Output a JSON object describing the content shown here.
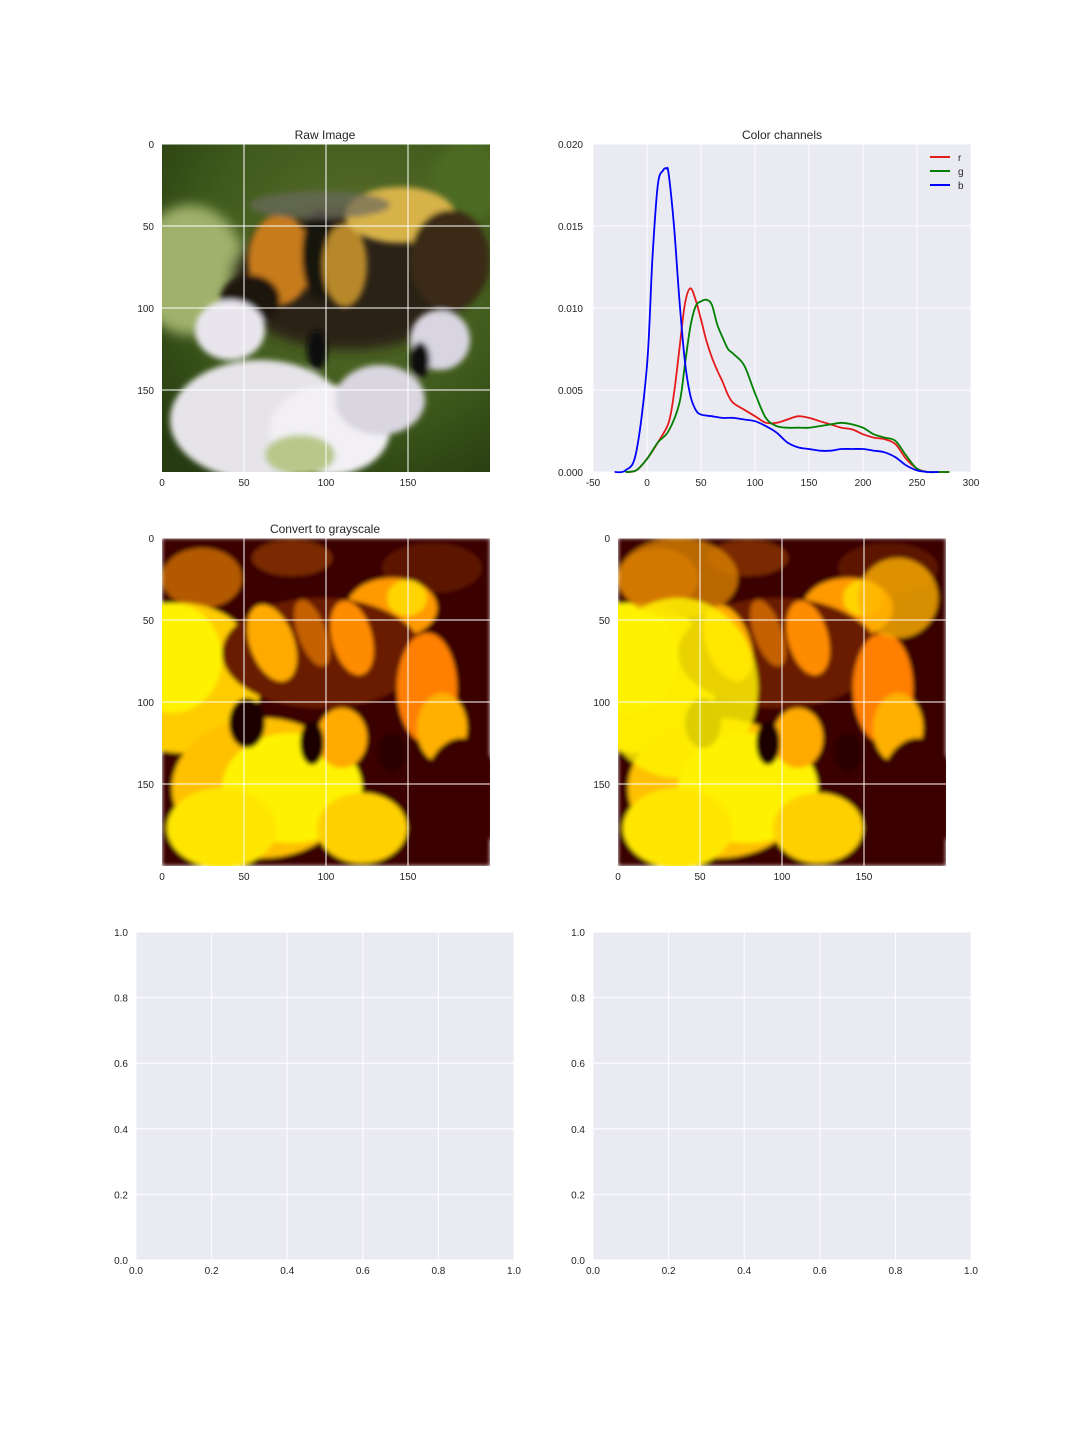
{
  "chart_data": [
    {
      "type": "image",
      "title": "Raw Image",
      "colormap": "rgb",
      "xticks": [
        0,
        50,
        100,
        150
      ],
      "yticks": [
        0,
        50,
        100,
        150
      ],
      "xlim": [
        0,
        200
      ],
      "ylim": [
        200,
        0
      ],
      "grid": true
    },
    {
      "type": "line",
      "title": "Color channels",
      "xlim": [
        -50,
        300
      ],
      "ylim": [
        0,
        0.02
      ],
      "xticks": [
        -50,
        0,
        50,
        100,
        150,
        200,
        250,
        300
      ],
      "yticks": [
        "0.000",
        "0.005",
        "0.010",
        "0.015",
        "0.020"
      ],
      "grid": true,
      "legend": "top-right",
      "series": [
        {
          "name": "r",
          "color": "#e41a1c",
          "x": [
            -20,
            -10,
            0,
            10,
            20,
            25,
            30,
            35,
            40,
            45,
            50,
            55,
            60,
            65,
            70,
            75,
            80,
            90,
            100,
            110,
            120,
            130,
            140,
            150,
            160,
            170,
            180,
            190,
            200,
            210,
            220,
            230,
            240,
            250,
            260,
            270,
            280
          ],
          "y": [
            0.0,
            0.0001,
            0.0008,
            0.0018,
            0.003,
            0.0048,
            0.0075,
            0.0102,
            0.0112,
            0.0105,
            0.0093,
            0.008,
            0.007,
            0.0062,
            0.0055,
            0.0047,
            0.0042,
            0.0038,
            0.0034,
            0.003,
            0.003,
            0.0032,
            0.0034,
            0.0033,
            0.0031,
            0.0029,
            0.0027,
            0.0026,
            0.0023,
            0.0021,
            0.002,
            0.0017,
            0.0008,
            0.0002,
            0.0,
            0.0,
            0.0
          ]
        },
        {
          "name": "g",
          "color": "#008000",
          "x": [
            -20,
            -10,
            0,
            10,
            20,
            30,
            35,
            40,
            45,
            50,
            55,
            60,
            65,
            70,
            75,
            80,
            90,
            100,
            110,
            120,
            130,
            140,
            150,
            160,
            170,
            180,
            190,
            200,
            210,
            220,
            230,
            240,
            250,
            260,
            270,
            280
          ],
          "y": [
            0.0,
            0.0001,
            0.0008,
            0.0018,
            0.0025,
            0.0042,
            0.0065,
            0.0088,
            0.0101,
            0.0104,
            0.0105,
            0.0102,
            0.009,
            0.0082,
            0.0075,
            0.0072,
            0.0065,
            0.0048,
            0.0033,
            0.0028,
            0.0027,
            0.0027,
            0.0027,
            0.0028,
            0.0029,
            0.003,
            0.0029,
            0.0027,
            0.0023,
            0.0021,
            0.0019,
            0.001,
            0.0002,
            0.0,
            0.0,
            0.0
          ]
        },
        {
          "name": "b",
          "color": "#0000ff",
          "x": [
            -30,
            -20,
            -10,
            0,
            5,
            10,
            15,
            18,
            20,
            25,
            30,
            35,
            40,
            45,
            50,
            60,
            70,
            80,
            90,
            100,
            110,
            120,
            130,
            140,
            150,
            160,
            170,
            180,
            190,
            200,
            210,
            220,
            230,
            240,
            250,
            260,
            270
          ],
          "y": [
            0.0,
            0.0001,
            0.0012,
            0.0065,
            0.013,
            0.0175,
            0.0184,
            0.0185,
            0.0182,
            0.015,
            0.0105,
            0.0068,
            0.0047,
            0.0038,
            0.0035,
            0.0034,
            0.0033,
            0.0033,
            0.0032,
            0.0031,
            0.0028,
            0.0024,
            0.0018,
            0.0015,
            0.0014,
            0.0013,
            0.0013,
            0.0014,
            0.0014,
            0.0014,
            0.0013,
            0.0012,
            0.0009,
            0.0004,
            0.0001,
            0.0,
            0.0
          ]
        }
      ]
    },
    {
      "type": "image",
      "title": "Convert to grayscale",
      "colormap": "afmhot",
      "xticks": [
        0,
        50,
        100,
        150
      ],
      "yticks": [
        0,
        50,
        100,
        150
      ],
      "xlim": [
        0,
        200
      ],
      "ylim": [
        200,
        0
      ],
      "grid": true
    },
    {
      "type": "image",
      "title": "",
      "colormap": "afmhot",
      "xticks": [
        0,
        50,
        100,
        150
      ],
      "yticks": [
        0,
        50,
        100,
        150
      ],
      "xlim": [
        0,
        200
      ],
      "ylim": [
        200,
        0
      ],
      "grid": true
    },
    {
      "type": "empty",
      "title": "",
      "xlim": [
        0,
        1
      ],
      "ylim": [
        0,
        1
      ],
      "xticks": [
        "0.0",
        "0.2",
        "0.4",
        "0.6",
        "0.8",
        "1.0"
      ],
      "yticks": [
        "0.0",
        "0.2",
        "0.4",
        "0.6",
        "0.8",
        "1.0"
      ],
      "grid": true
    },
    {
      "type": "empty",
      "title": "",
      "xlim": [
        0,
        1
      ],
      "ylim": [
        0,
        1
      ],
      "xticks": [
        "0.0",
        "0.2",
        "0.4",
        "0.6",
        "0.8",
        "1.0"
      ],
      "yticks": [
        "0.0",
        "0.2",
        "0.4",
        "0.6",
        "0.8",
        "1.0"
      ],
      "grid": true
    }
  ],
  "colors": {
    "axes_background": "#eaeaf2",
    "grid": "#ffffff",
    "text": "#262626"
  }
}
